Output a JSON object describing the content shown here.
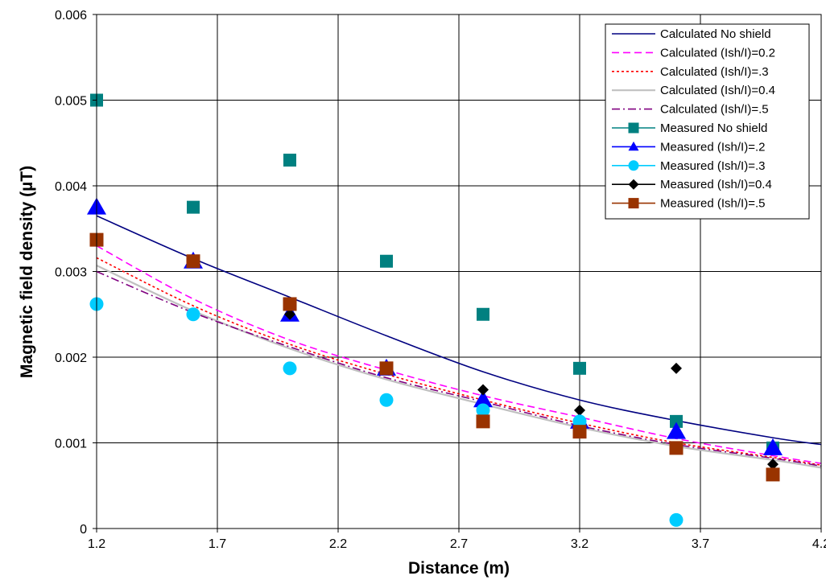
{
  "chart_data": {
    "type": "line",
    "title": "",
    "xlabel": "Distance (m)",
    "ylabel": "Magnetic field density (µT)",
    "xlim": [
      1.2,
      4.2
    ],
    "ylim": [
      0,
      0.006
    ],
    "x_ticks": [
      "1.2",
      "1.7",
      "2.2",
      "2.7",
      "3.2",
      "3.7",
      "4.2"
    ],
    "y_ticks": [
      "0",
      "0.001",
      "0.002",
      "0.003",
      "0.004",
      "0.005",
      "0.006"
    ],
    "grid": true,
    "legend_position": "top-right",
    "series": [
      {
        "name": "Calculated No shield",
        "kind": "line",
        "dash": "solid",
        "color": "#000080",
        "x": [
          1.2,
          1.6,
          2.0,
          2.4,
          2.8,
          3.2,
          3.6,
          4.0,
          4.2
        ],
        "y": [
          0.00365,
          0.00315,
          0.0027,
          0.00225,
          0.00183,
          0.0015,
          0.00126,
          0.00106,
          0.00098
        ]
      },
      {
        "name": "Calculated (Ish/I)=0.2",
        "kind": "line",
        "dash": "dashed",
        "color": "#ff00ff",
        "x": [
          1.2,
          1.6,
          2.0,
          2.4,
          2.8,
          3.2,
          3.6,
          4.0,
          4.2
        ],
        "y": [
          0.0033,
          0.00268,
          0.0022,
          0.00185,
          0.00155,
          0.0013,
          0.00105,
          0.00085,
          0.00076
        ]
      },
      {
        "name": "Calculated (Ish/I)=.3",
        "kind": "line",
        "dash": "dotted",
        "color": "#ff0000",
        "x": [
          1.2,
          1.6,
          2.0,
          2.4,
          2.8,
          3.2,
          3.6,
          4.0,
          4.2
        ],
        "y": [
          0.00316,
          0.0026,
          0.00215,
          0.0018,
          0.0015,
          0.00123,
          0.001,
          0.00083,
          0.00074
        ]
      },
      {
        "name": "Calculated (Ish/I)=0.4",
        "kind": "line",
        "dash": "solid",
        "color": "#c0c0c0",
        "x": [
          1.2,
          1.6,
          2.0,
          2.4,
          2.8,
          3.2,
          3.6,
          4.0,
          4.2
        ],
        "y": [
          0.00307,
          0.00254,
          0.0021,
          0.00174,
          0.00145,
          0.00118,
          0.00096,
          0.0008,
          0.00071
        ]
      },
      {
        "name": "Calculated (Ish/I)=.5",
        "kind": "line",
        "dash": "dashdot",
        "color": "#800080",
        "x": [
          1.2,
          1.6,
          2.0,
          2.4,
          2.8,
          3.2,
          3.6,
          4.0,
          4.2
        ],
        "y": [
          0.003,
          0.00252,
          0.00212,
          0.00176,
          0.00148,
          0.0012,
          0.00098,
          0.00082,
          0.00073
        ]
      },
      {
        "name": "Measured No shield",
        "kind": "marker",
        "marker": "square",
        "color": "#008080",
        "size": 16,
        "x": [
          1.2,
          1.6,
          2.0,
          2.4,
          2.8,
          3.2,
          3.6,
          4.0
        ],
        "y": [
          0.005,
          0.00375,
          0.0043,
          0.00312,
          0.0025,
          0.00187,
          0.00125,
          0.00094
        ]
      },
      {
        "name": "Measured (Ish/I)=.2",
        "kind": "marker",
        "marker": "triangle",
        "color": "#0000ff",
        "size": 24,
        "x": [
          1.2,
          1.6,
          2.0,
          2.4,
          2.8,
          3.2,
          3.6,
          4.0
        ],
        "y": [
          0.00375,
          0.00312,
          0.0025,
          0.00187,
          0.0015,
          0.00125,
          0.00113,
          0.00094
        ]
      },
      {
        "name": "Measured (Ish/I)=.3",
        "kind": "marker",
        "marker": "circle",
        "color": "#00ccff",
        "size": 17,
        "x": [
          1.2,
          1.6,
          2.0,
          2.4,
          2.8,
          3.2,
          3.6
        ],
        "y": [
          0.00262,
          0.0025,
          0.00187,
          0.0015,
          0.00138,
          0.00125,
          0.0001
        ]
      },
      {
        "name": "Measured (Ish/I)=0.4",
        "kind": "marker",
        "marker": "diamond",
        "color": "#000000",
        "size": 14,
        "x": [
          1.6,
          2.0,
          2.4,
          2.8,
          3.2,
          3.6,
          4.0
        ],
        "y": [
          0.0025,
          0.0025,
          0.00187,
          0.00162,
          0.00138,
          0.00187,
          0.00075
        ]
      },
      {
        "name": "Measured (Ish/I)=.5",
        "kind": "marker",
        "marker": "square",
        "color": "#993300",
        "size": 17,
        "x": [
          1.2,
          1.6,
          2.0,
          2.4,
          2.8,
          3.2,
          3.6,
          4.0
        ],
        "y": [
          0.00337,
          0.00312,
          0.00262,
          0.00187,
          0.00125,
          0.00113,
          0.00094,
          0.00063
        ]
      }
    ]
  }
}
